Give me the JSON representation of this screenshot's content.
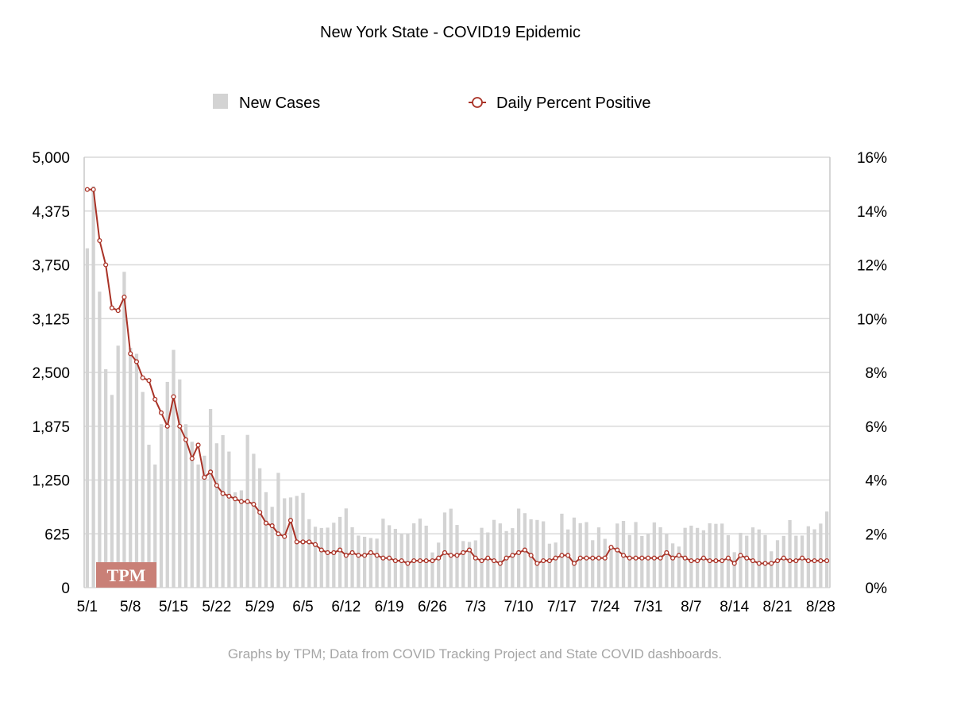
{
  "chart_data": {
    "type": "bar+line",
    "title": "New York State - COVID19 Epidemic",
    "legend": {
      "position": "top",
      "bars_label": "New Cases",
      "line_label": "Daily Percent Positive"
    },
    "colors": {
      "bars": "#d3d3d3",
      "line": "#a93226",
      "grid": "#d9d9d9",
      "axis": "#c8c8c8",
      "text": "#000000",
      "footer": "#a6a6a6",
      "logo_bg": "#c98077",
      "logo_text": "#ffffff"
    },
    "y_left": {
      "min": 0,
      "max": 5000,
      "ticks": [
        "0",
        "625",
        "1,250",
        "1,875",
        "2,500",
        "3,125",
        "3,750",
        "4,375",
        "5,000"
      ]
    },
    "y_right": {
      "min": 0,
      "max": 16,
      "ticks": [
        "0%",
        "2%",
        "4%",
        "6%",
        "8%",
        "10%",
        "12%",
        "14%",
        "16%"
      ]
    },
    "x_ticks": [
      "5/1",
      "5/8",
      "5/15",
      "5/22",
      "5/29",
      "6/5",
      "6/12",
      "6/19",
      "6/26",
      "7/3",
      "7/10",
      "7/17",
      "7/24",
      "7/31",
      "8/7",
      "8/14",
      "8/21",
      "8/28"
    ],
    "x_tick_step_days": 7,
    "grid": true,
    "series": [
      {
        "name": "New Cases",
        "kind": "bar",
        "values": [
          3942,
          4663,
          3438,
          2538,
          2239,
          2811,
          3669,
          2786,
          2716,
          2273,
          1660,
          1430,
          1898,
          2390,
          2762,
          2419,
          1898,
          1694,
          1430,
          1533,
          2076,
          1677,
          1772,
          1581,
          1107,
          1130,
          1774,
          1555,
          1387,
          1109,
          939,
          1333,
          1038,
          1048,
          1065,
          1100,
          795,
          707,
          693,
          697,
          754,
          822,
          920,
          702,
          605,
          591,
          576,
          569,
          801,
          725,
          683,
          629,
          631,
          747,
          802,
          720,
          409,
          523,
          873,
          917,
          728,
          541,
          531,
          549,
          695,
          641,
          787,
          746,
          657,
          691,
          918,
          865,
          794,
          786,
          770,
          510,
          524,
          859,
          676,
          814,
          749,
          761,
          551,
          700,
          567,
          484,
          745,
          775,
          611,
          762,
          600,
          629,
          758,
          701,
          626,
          514,
          477,
          695,
          720,
          694,
          666,
          747,
          741,
          744,
          610,
          412,
          637,
          603,
          700,
          676,
          611,
          422,
          551,
          601,
          785,
          603,
          605,
          713,
          678,
          744,
          884
        ]
      },
      {
        "name": "Daily Percent Positive",
        "kind": "line",
        "values": [
          14.8,
          14.8,
          12.9,
          12.0,
          10.4,
          10.3,
          10.8,
          8.7,
          8.4,
          7.8,
          7.7,
          7.0,
          6.5,
          6.0,
          7.1,
          6.0,
          5.5,
          4.8,
          5.3,
          4.1,
          4.3,
          3.8,
          3.5,
          3.4,
          3.3,
          3.2,
          3.2,
          3.1,
          2.8,
          2.4,
          2.3,
          2.0,
          1.9,
          2.5,
          1.7,
          1.7,
          1.7,
          1.6,
          1.4,
          1.3,
          1.3,
          1.4,
          1.2,
          1.3,
          1.2,
          1.2,
          1.3,
          1.2,
          1.1,
          1.1,
          1.0,
          1.0,
          0.9,
          1.0,
          1.0,
          1.0,
          1.0,
          1.1,
          1.3,
          1.2,
          1.2,
          1.3,
          1.4,
          1.1,
          1.0,
          1.1,
          1.0,
          0.9,
          1.1,
          1.2,
          1.3,
          1.4,
          1.2,
          0.9,
          1.0,
          1.0,
          1.1,
          1.2,
          1.2,
          0.9,
          1.1,
          1.1,
          1.1,
          1.1,
          1.1,
          1.5,
          1.4,
          1.2,
          1.1,
          1.1,
          1.1,
          1.1,
          1.1,
          1.1,
          1.3,
          1.1,
          1.2,
          1.1,
          1.0,
          1.0,
          1.1,
          1.0,
          1.0,
          1.0,
          1.1,
          0.9,
          1.2,
          1.1,
          1.0,
          0.9,
          0.9,
          0.9,
          1.0,
          1.1,
          1.0,
          1.0,
          1.1,
          1.0,
          1.0,
          1.0,
          1.0
        ]
      }
    ],
    "logo_text": "TPM",
    "footer": "Graphs by TPM; Data from COVID Tracking Project and State COVID dashboards."
  }
}
